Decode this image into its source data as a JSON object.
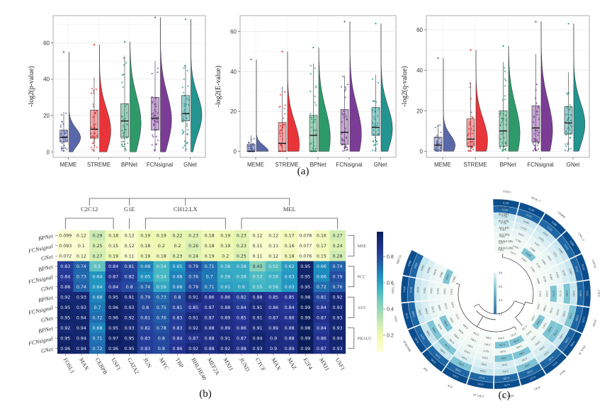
{
  "figure": {
    "panel_labels": [
      "(a)",
      "(b)",
      "(c)"
    ]
  },
  "chart_data": [
    {
      "type": "violin-box",
      "panel": "(a)-1",
      "title": "",
      "xlabel": "",
      "ylabel": "-log2(p-value)",
      "categories": [
        "MEME",
        "STREME",
        "BPNet",
        "FCNsignal",
        "GNet"
      ],
      "colors": [
        "#5a67a8",
        "#e8353a",
        "#2e9a6a",
        "#7b3c96",
        "#23948f"
      ],
      "ylim": [
        0,
        75
      ],
      "yticks": [
        0,
        20,
        40,
        60
      ],
      "grid": true,
      "boxes": [
        {
          "q1": 5.5,
          "median": 8,
          "q3": 12,
          "whisker_low": 0,
          "whisker_high": 22,
          "max": 55
        },
        {
          "q1": 7.5,
          "median": 12.5,
          "q3": 23,
          "whisker_low": 0,
          "whisker_high": 41,
          "max": 59
        },
        {
          "q1": 8,
          "median": 17,
          "q3": 26.5,
          "whisker_low": 0,
          "whisker_high": 53,
          "max": 60.5
        },
        {
          "q1": 12,
          "median": 18.5,
          "q3": 30,
          "whisker_low": 0,
          "whisker_high": 50,
          "max": 74
        },
        {
          "q1": 17,
          "median": 21,
          "q3": 31,
          "whisker_low": 0,
          "whisker_high": 48,
          "max": 73
        }
      ]
    },
    {
      "type": "violin-box",
      "panel": "(a)-2",
      "title": "",
      "xlabel": "",
      "ylabel": "-log2(E-value)",
      "categories": [
        "MEME",
        "STREME",
        "BPNet",
        "FCNsignal",
        "GNet"
      ],
      "colors": [
        "#5a67a8",
        "#e8353a",
        "#2e9a6a",
        "#7b3c96",
        "#23948f"
      ],
      "ylim": [
        0,
        68
      ],
      "yticks": [
        0,
        20,
        40,
        60
      ],
      "grid": true,
      "boxes": [
        {
          "q1": 0,
          "median": 0,
          "q3": 3.5,
          "whisker_low": 0,
          "whisker_high": 8,
          "max": 46
        },
        {
          "q1": 0,
          "median": 4,
          "q3": 14.5,
          "whisker_low": 0,
          "whisker_high": 32.5,
          "max": 50
        },
        {
          "q1": 0,
          "median": 8,
          "q3": 18,
          "whisker_low": 0,
          "whisker_high": 44,
          "max": 52
        },
        {
          "q1": 3.5,
          "median": 9.5,
          "q3": 21,
          "whisker_low": 0,
          "whisker_high": 38,
          "max": 65
        },
        {
          "q1": 8,
          "median": 12,
          "q3": 22,
          "whisker_low": 0,
          "whisker_high": 38.5,
          "max": 64
        }
      ]
    },
    {
      "type": "violin-box",
      "panel": "(a)-3",
      "title": "",
      "xlabel": "",
      "ylabel": "-log2(q-value)",
      "categories": [
        "MEME",
        "STREME",
        "BPNet",
        "FCNsignal",
        "GNet"
      ],
      "colors": [
        "#5a67a8",
        "#e8353a",
        "#2e9a6a",
        "#7b3c96",
        "#23948f"
      ],
      "ylim": [
        0,
        67
      ],
      "yticks": [
        0,
        20,
        40,
        60
      ],
      "grid": true,
      "boxes": [
        {
          "q1": 0.5,
          "median": 3,
          "q3": 7,
          "whisker_low": 0,
          "whisker_high": 13,
          "max": 46
        },
        {
          "q1": 2.5,
          "median": 6,
          "q3": 16,
          "whisker_low": 0,
          "whisker_high": 34,
          "max": 50
        },
        {
          "q1": 2.5,
          "median": 10,
          "q3": 20,
          "whisker_low": 0,
          "whisker_high": 44,
          "max": 52
        },
        {
          "q1": 4.5,
          "median": 11.5,
          "q3": 22.5,
          "whisker_low": 0,
          "whisker_high": 48,
          "max": 64
        },
        {
          "q1": 8.5,
          "median": 14,
          "q3": 22,
          "whisker_low": 0,
          "whisker_high": 39,
          "max": 63
        }
      ]
    },
    {
      "type": "heatmap",
      "panel": "(b)",
      "cell_groups": [
        {
          "name": "C2C12",
          "columns": [
            "FOSL1",
            "MAX",
            "CEBPB",
            "USF1"
          ]
        },
        {
          "name": "G1E",
          "columns": [
            "GATA2"
          ]
        },
        {
          "name": "CH12.LX",
          "columns": [
            "JUN",
            "MYC",
            "TBP",
            "BHLHE40",
            "MEF2A",
            "MXI1"
          ]
        },
        {
          "name": "MEL",
          "columns": [
            "JUND",
            "CTCF",
            "MAX",
            "MAZ",
            "E2F4",
            "MXI1",
            "USF1"
          ]
        }
      ],
      "columns": [
        "FOSL1",
        "MAX",
        "CEBPB",
        "USF1",
        "GATA2",
        "JUN",
        "MYC",
        "TBP",
        "BHLHE40",
        "MEF2A",
        "MXI1",
        "JUND",
        "CTCF",
        "MAX",
        "MAZ",
        "E2F4",
        "MXI1",
        "USF1"
      ],
      "metrics": [
        "MSE",
        "PCC",
        "AUC",
        "PRAUC"
      ],
      "row_labels": [
        "BPNet",
        "FCNsignal",
        "GNet",
        "BPNet",
        "FCNsignal",
        "GNet",
        "BPNet",
        "FCNsignal",
        "GNet",
        "BPNet",
        "FCNsignal",
        "GNet"
      ],
      "values": [
        [
          0.099,
          0.12,
          0.29,
          0.18,
          0.12,
          0.19,
          0.19,
          0.22,
          0.23,
          0.18,
          0.19,
          0.23,
          0.12,
          0.12,
          0.17,
          0.078,
          0.16,
          0.27
        ],
        [
          0.093,
          0.1,
          0.25,
          0.15,
          0.12,
          0.18,
          0.2,
          0.2,
          0.26,
          0.18,
          0.19,
          0.23,
          0.11,
          0.11,
          0.16,
          0.077,
          0.17,
          0.24
        ],
        [
          0.072,
          0.12,
          0.27,
          0.19,
          0.11,
          0.19,
          0.18,
          0.23,
          0.24,
          0.19,
          0.2,
          0.25,
          0.11,
          0.12,
          0.18,
          0.076,
          0.15,
          0.28
        ],
        [
          0.83,
          0.74,
          0.5,
          0.84,
          0.81,
          0.68,
          0.54,
          0.65,
          0.79,
          0.71,
          0.58,
          0.58,
          0.43,
          0.52,
          0.62,
          0.95,
          0.66,
          0.74
        ],
        [
          0.84,
          0.73,
          0.64,
          0.87,
          0.82,
          0.65,
          0.54,
          0.68,
          0.76,
          0.7,
          0.59,
          0.58,
          0.53,
          0.56,
          0.63,
          0.95,
          0.66,
          0.79
        ],
        [
          0.88,
          0.74,
          0.64,
          0.84,
          0.8,
          0.74,
          0.59,
          0.68,
          0.79,
          0.71,
          0.61,
          0.6,
          0.55,
          0.56,
          0.63,
          0.95,
          0.72,
          0.76
        ],
        [
          0.92,
          0.93,
          0.68,
          0.95,
          0.91,
          0.79,
          0.73,
          0.8,
          0.91,
          0.86,
          0.86,
          0.82,
          0.88,
          0.85,
          0.85,
          0.98,
          0.81,
          0.92
        ],
        [
          0.95,
          0.93,
          0.7,
          0.96,
          0.93,
          0.8,
          0.75,
          0.81,
          0.85,
          0.87,
          0.88,
          0.84,
          0.91,
          0.86,
          0.84,
          0.99,
          0.84,
          0.93
        ],
        [
          0.95,
          0.94,
          0.72,
          0.96,
          0.92,
          0.81,
          0.76,
          0.83,
          0.91,
          0.87,
          0.89,
          0.85,
          0.91,
          0.87,
          0.86,
          0.99,
          0.87,
          0.93
        ],
        [
          0.92,
          0.94,
          0.68,
          0.95,
          0.93,
          0.82,
          0.78,
          0.83,
          0.92,
          0.88,
          0.89,
          0.86,
          0.91,
          0.89,
          0.88,
          0.98,
          0.84,
          0.93
        ],
        [
          0.95,
          0.94,
          0.71,
          0.97,
          0.95,
          0.83,
          0.8,
          0.84,
          0.87,
          0.88,
          0.91,
          0.87,
          0.94,
          0.9,
          0.88,
          0.99,
          0.86,
          0.94
        ],
        [
          0.96,
          0.94,
          0.72,
          0.96,
          0.95,
          0.83,
          0.8,
          0.86,
          0.92,
          0.88,
          0.92,
          0.88,
          0.93,
          0.9,
          0.89,
          0.99,
          0.87,
          0.93
        ]
      ],
      "colorbar": {
        "range": [
          0.07,
          0.99
        ],
        "ticks": [
          0.2,
          0.4,
          0.6,
          0.8
        ],
        "colormap": "YlGnBu"
      }
    },
    {
      "type": "circular-heatmap",
      "panel": "(c)",
      "ring_legend": [
        "MSE(H)",
        "MSE(M)",
        "PCC(H)",
        "PCC(M)",
        "AUC(H)",
        "AUC(M)",
        "PRAUC(H)",
        "PRAUC(M)"
      ],
      "sector_labels": [
        "MEF2A",
        "FOSL1",
        "MAX_C",
        "CEBPB",
        "USF1_C",
        "GATA2",
        "CTCF",
        "JUND",
        "MAX_M",
        "MAZ",
        "E2F4",
        "MXI1_M",
        "USF1_M",
        "JUN",
        "TBP",
        "BHLHE40",
        "MYC",
        "MXI1_C"
      ],
      "sample_values": {
        "MEF2A": [
          0.096,
          0.085,
          0.922,
          0.858,
          0.979,
          0.966,
          0.975,
          0.966
        ],
        "MXI1_C": [
          0.129,
          0.105,
          0.839,
          0.852,
          0.951,
          0.978,
          0.955,
          0.976
        ]
      },
      "colorbar": {
        "ticks": [
          0.2,
          0.4,
          0.6,
          0.8
        ]
      }
    }
  ]
}
